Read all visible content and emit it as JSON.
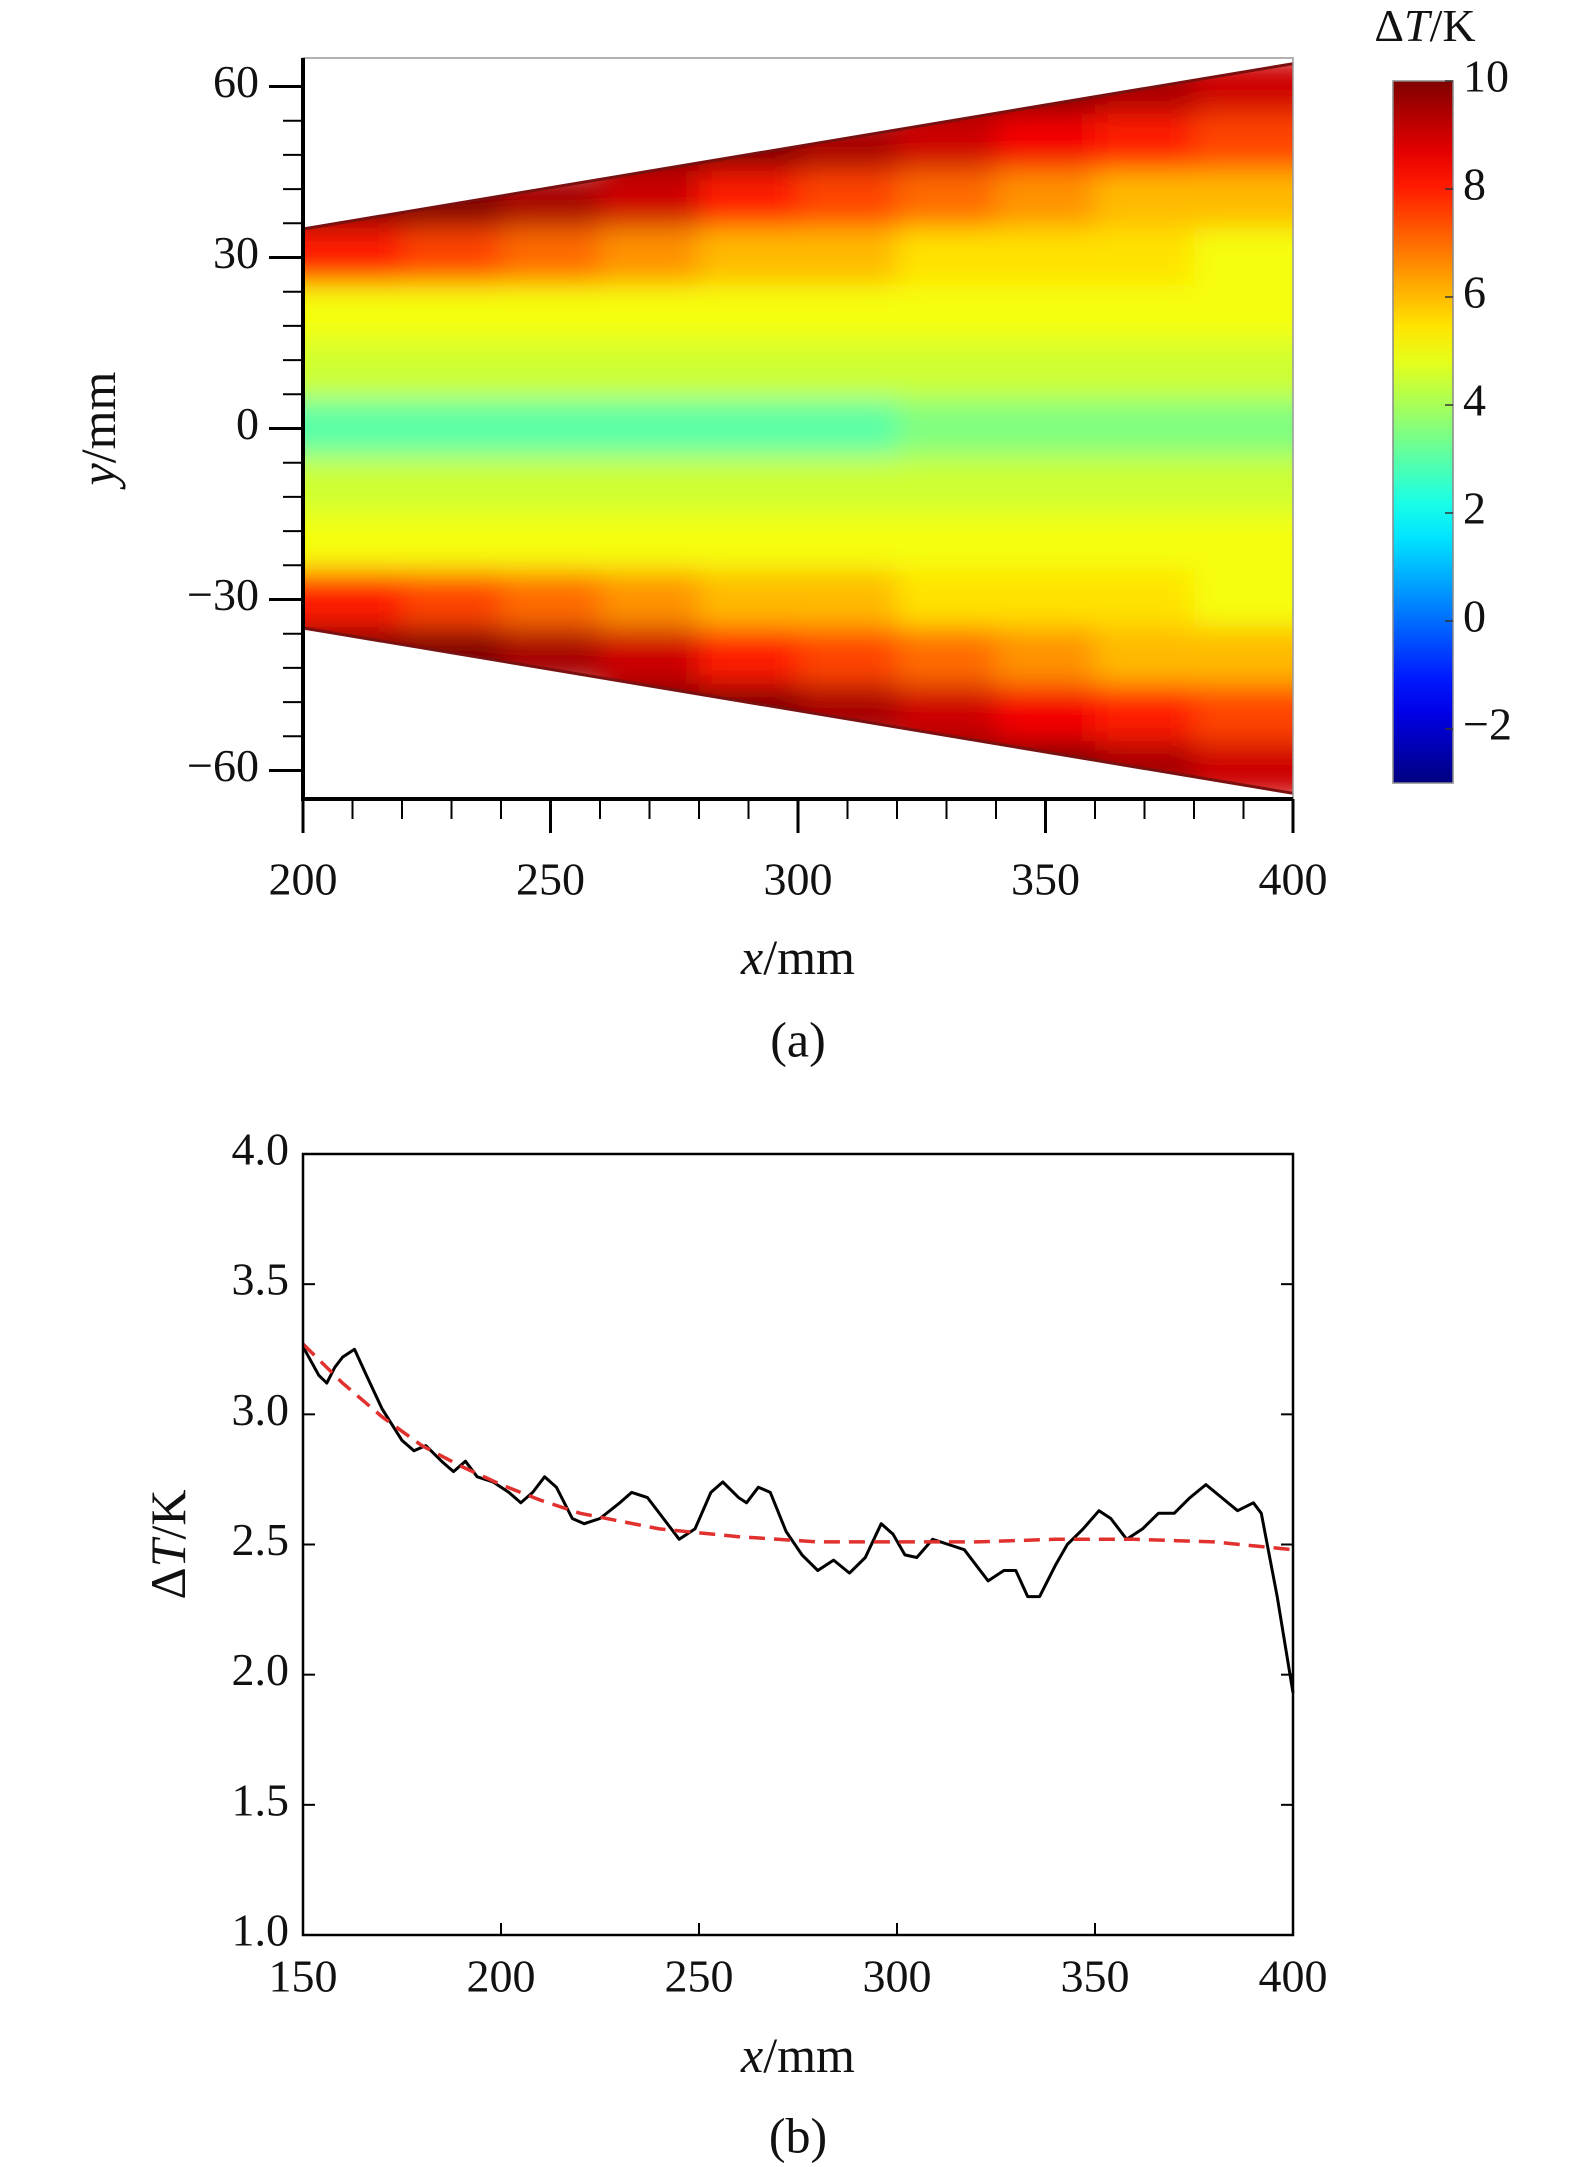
{
  "chart_data": [
    {
      "type": "heatmap",
      "caption": "(a)",
      "xlabel": "x/mm",
      "ylabel": "y/mm",
      "colorbar_label": "ΔT/K",
      "xlim": [
        200,
        400
      ],
      "xticks": [
        200,
        250,
        300,
        350,
        400
      ],
      "xminorticks": [
        210,
        220,
        230,
        240,
        260,
        270,
        280,
        290,
        310,
        320,
        330,
        340,
        360,
        370,
        380,
        390
      ],
      "ylim": [
        -65,
        65
      ],
      "yticks": [
        {
          "value": -60,
          "label": "−60"
        },
        {
          "value": -30,
          "label": "−30"
        },
        0,
        30,
        60
      ],
      "yminorticks": [
        -54,
        -48,
        -42,
        -36,
        -24,
        -18,
        -12,
        -6,
        6,
        12,
        18,
        24,
        36,
        42,
        48,
        54
      ],
      "colormap": "jet",
      "zlim": [
        -3,
        10
      ],
      "zticks": [
        {
          "value": -2,
          "label": "−2"
        },
        0,
        2,
        4,
        6,
        8,
        10
      ],
      "mask_x": [
        200,
        400
      ],
      "mask_upper": [
        35,
        64
      ],
      "mask_lower": [
        -35,
        -64
      ],
      "x": [
        210,
        230,
        250,
        270,
        290,
        310,
        330,
        350,
        370,
        390
      ],
      "y": [
        60,
        50,
        40,
        30,
        20,
        10,
        0,
        -10,
        -20,
        -30,
        -40,
        -50,
        -60
      ],
      "z": [
        [
          null,
          null,
          null,
          null,
          null,
          null,
          10,
          10,
          9.5,
          9
        ],
        [
          null,
          null,
          null,
          10,
          10,
          9.5,
          9,
          8.5,
          8,
          7.5
        ],
        [
          10,
          10,
          9.5,
          9,
          8,
          7.5,
          7,
          6.5,
          6,
          6
        ],
        [
          8,
          7.5,
          7,
          6.5,
          6,
          6,
          5.5,
          5.5,
          5.5,
          5
        ],
        [
          5,
          5,
          5,
          5,
          5,
          5,
          5,
          5,
          5,
          5
        ],
        [
          4.5,
          4.5,
          4.5,
          4.5,
          4.5,
          4.5,
          4.5,
          4.5,
          4.5,
          4.5
        ],
        [
          3,
          3,
          3,
          3,
          3,
          3,
          3.5,
          3.5,
          3.5,
          3.5
        ],
        [
          4.5,
          4.5,
          4.5,
          4.5,
          4.5,
          4.5,
          4.5,
          4.5,
          4.5,
          4.5
        ],
        [
          5,
          5,
          5,
          5,
          5,
          5,
          5,
          5,
          5,
          5
        ],
        [
          8,
          7.5,
          7,
          6.5,
          6,
          6,
          5.5,
          5.5,
          5.5,
          5
        ],
        [
          10,
          10,
          9.5,
          9,
          8,
          7.5,
          7,
          6.5,
          6,
          6
        ],
        [
          null,
          null,
          null,
          10,
          10,
          9.5,
          9,
          8.5,
          8,
          7.5
        ],
        [
          null,
          null,
          null,
          null,
          null,
          null,
          10,
          10,
          9.5,
          9
        ]
      ]
    },
    {
      "type": "line",
      "caption": "(b)",
      "xlabel": "x/mm",
      "ylabel": "ΔT/K",
      "xlim": [
        150,
        400
      ],
      "xticks": [
        150,
        200,
        250,
        300,
        350,
        400
      ],
      "ylim": [
        1,
        4
      ],
      "yticks": [
        {
          "value": 1,
          "label": "1.0"
        },
        1.5,
        {
          "value": 2,
          "label": "2.0"
        },
        2.5,
        {
          "value": 3,
          "label": "3.0"
        },
        3.5,
        {
          "value": 4,
          "label": "4.0"
        }
      ],
      "series": [
        {
          "color": "#000000",
          "dash": false,
          "x": [
            150,
            154,
            156,
            158,
            160,
            163,
            166,
            170,
            175,
            178,
            181,
            185,
            188,
            191,
            194,
            198,
            202,
            205,
            208,
            211,
            214,
            218,
            221,
            225,
            230,
            233,
            237,
            241,
            245,
            249,
            253,
            256,
            260,
            262,
            265,
            268,
            272,
            276,
            280,
            284,
            288,
            292,
            296,
            299,
            302,
            305,
            309,
            313,
            317,
            320,
            323,
            327,
            330,
            333,
            336,
            340,
            343,
            347,
            351,
            354,
            358,
            362,
            366,
            370,
            374,
            378,
            382,
            386,
            390,
            392,
            396,
            400
          ],
          "values": [
            3.26,
            3.15,
            3.12,
            3.18,
            3.22,
            3.25,
            3.15,
            3.02,
            2.9,
            2.86,
            2.88,
            2.82,
            2.78,
            2.82,
            2.76,
            2.74,
            2.7,
            2.66,
            2.7,
            2.76,
            2.72,
            2.6,
            2.58,
            2.6,
            2.66,
            2.7,
            2.68,
            2.6,
            2.52,
            2.56,
            2.7,
            2.74,
            2.68,
            2.66,
            2.72,
            2.7,
            2.55,
            2.46,
            2.4,
            2.44,
            2.39,
            2.45,
            2.58,
            2.54,
            2.46,
            2.45,
            2.52,
            2.5,
            2.48,
            2.42,
            2.36,
            2.4,
            2.4,
            2.3,
            2.3,
            2.42,
            2.5,
            2.56,
            2.63,
            2.6,
            2.52,
            2.56,
            2.62,
            2.62,
            2.68,
            2.73,
            2.68,
            2.63,
            2.66,
            2.62,
            2.3,
            1.93
          ]
        },
        {
          "color": "#e0312f",
          "dash": true,
          "x": [
            150,
            160,
            170,
            180,
            190,
            200,
            210,
            220,
            240,
            260,
            280,
            300,
            320,
            340,
            360,
            380,
            400
          ],
          "values": [
            3.27,
            3.12,
            2.99,
            2.88,
            2.8,
            2.73,
            2.67,
            2.62,
            2.56,
            2.53,
            2.51,
            2.51,
            2.51,
            2.52,
            2.52,
            2.51,
            2.48
          ]
        }
      ]
    }
  ]
}
